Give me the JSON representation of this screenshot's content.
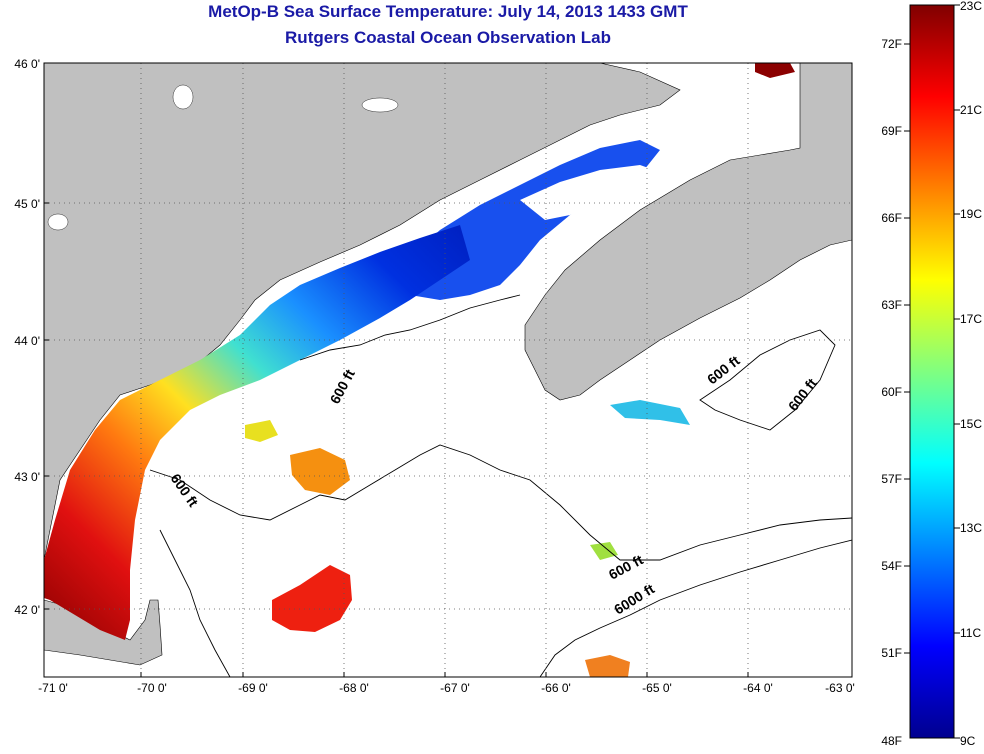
{
  "header": {
    "title": "MetOp-B Sea Surface Temperature:  July 14, 2013 1433 GMT",
    "subtitle": "Rutgers Coastal Ocean Observation Lab"
  },
  "map": {
    "lon_ticks": [
      "-71 0'",
      "-70 0'",
      "-69 0'",
      "-68 0'",
      "-67 0'",
      "-66 0'",
      "-65 0'",
      "-64 0'",
      "-63 0'"
    ],
    "lat_ticks": [
      "46 0'",
      "45 0'",
      "44 0'",
      "43 0'",
      "42 0'"
    ],
    "lon_range": [
      -71,
      -63
    ],
    "lat_range": [
      41.5,
      46
    ],
    "land_color": "#c0c0c0",
    "no_data_color": "#ffffff",
    "grid": "dotted",
    "contour_labels": [
      "600 ft",
      "600 ft",
      "600 ft",
      "600 ft",
      "600 ft",
      "6000 ft"
    ]
  },
  "colorbar": {
    "fahrenheit_labels": [
      "72F",
      "69F",
      "66F",
      "63F",
      "60F",
      "57F",
      "54F",
      "51F",
      "48F"
    ],
    "celsius_labels": [
      "23C",
      "21C",
      "19C",
      "17C",
      "15C",
      "13C",
      "11C",
      "9C"
    ],
    "range_c": [
      9,
      23
    ],
    "colormap": "jet",
    "stops": [
      "#00008f",
      "#0000ff",
      "#0080ff",
      "#00ffff",
      "#80ff80",
      "#ffff00",
      "#ff8000",
      "#ff0000",
      "#800000"
    ]
  }
}
